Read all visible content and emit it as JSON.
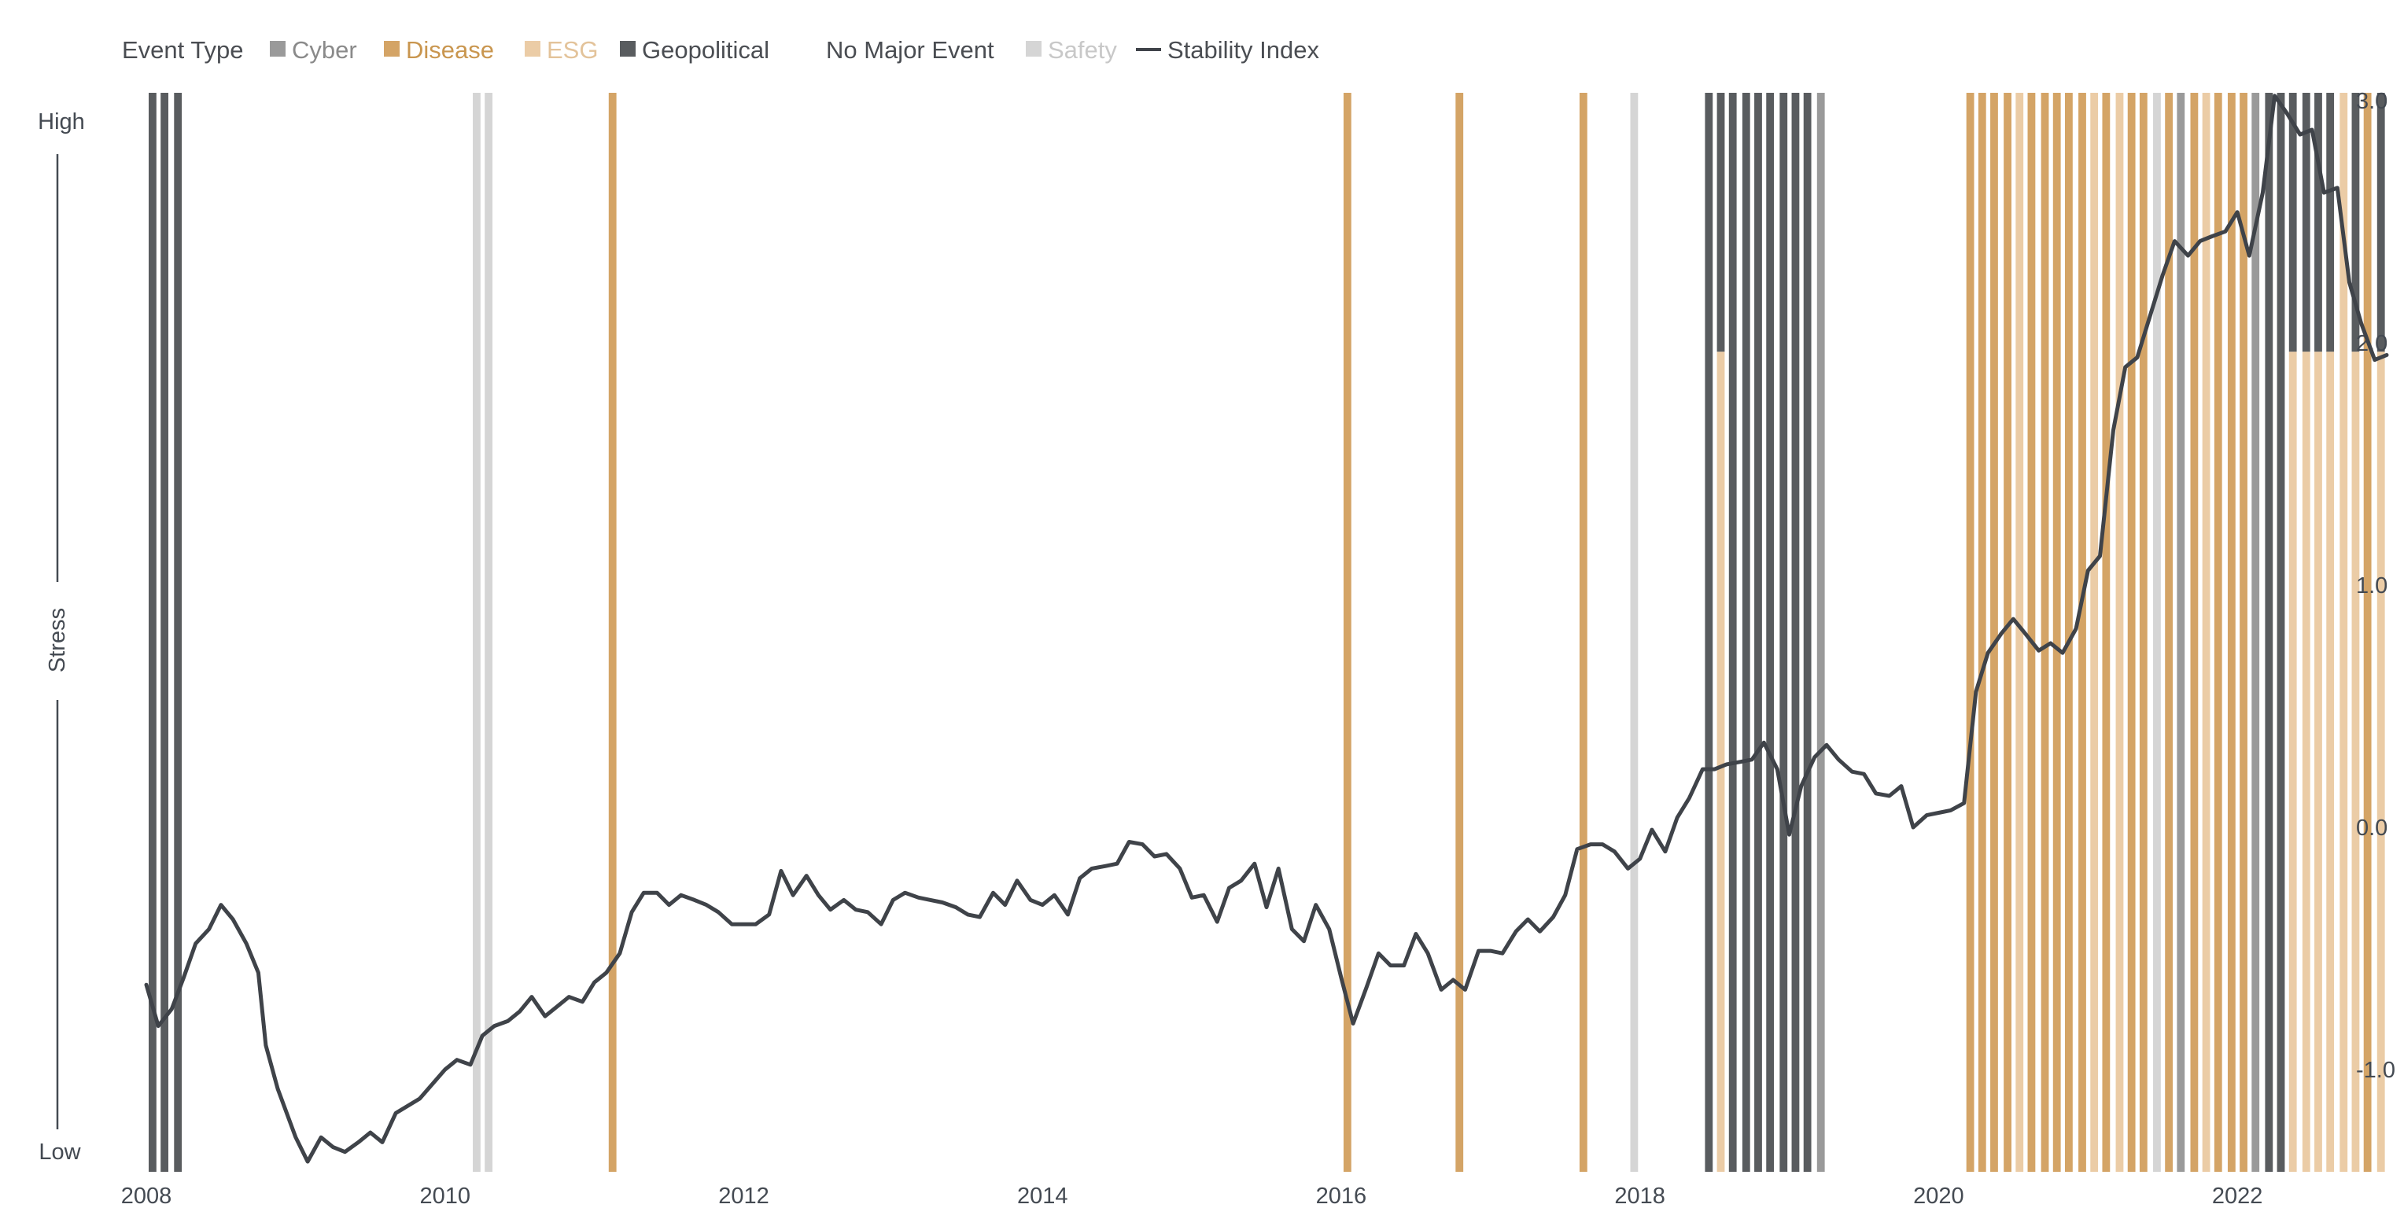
{
  "legend": {
    "title": "Event Type",
    "items": [
      {
        "key": "cyber",
        "label": "Cyber",
        "color": "#9a9a9a",
        "text_color": "#8a8a8a",
        "swatch": "square"
      },
      {
        "key": "disease",
        "label": "Disease",
        "color": "#d4a466",
        "text_color": "#c9964f",
        "swatch": "square"
      },
      {
        "key": "esg",
        "label": "ESG",
        "color": "#ebcca6",
        "text_color": "#e3c39a",
        "swatch": "square"
      },
      {
        "key": "geopolitical",
        "label": "Geopolitical",
        "color": "#595c5f",
        "text_color": "#4a4d52",
        "swatch": "square"
      },
      {
        "key": "none",
        "label": "No Major Event",
        "color": "#ffffff",
        "text_color": "#4a4d52",
        "swatch": "none"
      },
      {
        "key": "safety",
        "label": "Safety",
        "color": "#d5d5d5",
        "text_color": "#c8c8c8",
        "swatch": "square"
      },
      {
        "key": "index",
        "label": "Stability Index",
        "color": "#3f4349",
        "text_color": "#4a4d52",
        "swatch": "line"
      }
    ]
  },
  "chart_data": {
    "type": "line",
    "left_axis": {
      "label": "Stress",
      "high_label": "High",
      "low_label": "Low"
    },
    "y_ticks": [
      "3.0",
      "2.0",
      "1.0",
      "0.0",
      "-1.0"
    ],
    "y_tick_values": [
      3.0,
      2.0,
      1.0,
      0.0,
      -1.0
    ],
    "ylim": [
      -1.5,
      3.05
    ],
    "xlim": [
      2008,
      2023.0
    ],
    "x_ticks": [
      "2008",
      "2010",
      "2012",
      "2014",
      "2016",
      "2018",
      "2020",
      "2022"
    ],
    "x_tick_values": [
      2008,
      2010,
      2012,
      2014,
      2016,
      2018,
      2020,
      2022
    ],
    "series": [
      {
        "name": "Stability Index",
        "color": "#3f4349",
        "points": [
          [
            2008.0,
            -0.65
          ],
          [
            2008.08,
            -0.82
          ],
          [
            2008.17,
            -0.75
          ],
          [
            2008.25,
            -0.62
          ],
          [
            2008.33,
            -0.48
          ],
          [
            2008.42,
            -0.42
          ],
          [
            2008.5,
            -0.32
          ],
          [
            2008.58,
            -0.38
          ],
          [
            2008.67,
            -0.48
          ],
          [
            2008.75,
            -0.6
          ],
          [
            2008.8,
            -0.9
          ],
          [
            2008.88,
            -1.08
          ],
          [
            2009.0,
            -1.28
          ],
          [
            2009.08,
            -1.38
          ],
          [
            2009.17,
            -1.28
          ],
          [
            2009.25,
            -1.32
          ],
          [
            2009.33,
            -1.34
          ],
          [
            2009.42,
            -1.3
          ],
          [
            2009.5,
            -1.26
          ],
          [
            2009.58,
            -1.3
          ],
          [
            2009.67,
            -1.18
          ],
          [
            2009.83,
            -1.12
          ],
          [
            2010.0,
            -1.0
          ],
          [
            2010.08,
            -0.96
          ],
          [
            2010.17,
            -0.98
          ],
          [
            2010.25,
            -0.86
          ],
          [
            2010.33,
            -0.82
          ],
          [
            2010.42,
            -0.8
          ],
          [
            2010.5,
            -0.76
          ],
          [
            2010.58,
            -0.7
          ],
          [
            2010.67,
            -0.78
          ],
          [
            2010.75,
            -0.74
          ],
          [
            2010.83,
            -0.7
          ],
          [
            2010.92,
            -0.72
          ],
          [
            2011.0,
            -0.64
          ],
          [
            2011.08,
            -0.6
          ],
          [
            2011.17,
            -0.52
          ],
          [
            2011.25,
            -0.35
          ],
          [
            2011.33,
            -0.27
          ],
          [
            2011.42,
            -0.27
          ],
          [
            2011.5,
            -0.32
          ],
          [
            2011.58,
            -0.28
          ],
          [
            2011.67,
            -0.3
          ],
          [
            2011.75,
            -0.32
          ],
          [
            2011.83,
            -0.35
          ],
          [
            2011.92,
            -0.4
          ],
          [
            2012.0,
            -0.4
          ],
          [
            2012.08,
            -0.4
          ],
          [
            2012.17,
            -0.36
          ],
          [
            2012.25,
            -0.18
          ],
          [
            2012.33,
            -0.28
          ],
          [
            2012.42,
            -0.2
          ],
          [
            2012.5,
            -0.28
          ],
          [
            2012.58,
            -0.34
          ],
          [
            2012.67,
            -0.3
          ],
          [
            2012.75,
            -0.34
          ],
          [
            2012.83,
            -0.35
          ],
          [
            2012.92,
            -0.4
          ],
          [
            2013.0,
            -0.3
          ],
          [
            2013.08,
            -0.27
          ],
          [
            2013.17,
            -0.29
          ],
          [
            2013.25,
            -0.3
          ],
          [
            2013.33,
            -0.31
          ],
          [
            2013.42,
            -0.33
          ],
          [
            2013.5,
            -0.36
          ],
          [
            2013.58,
            -0.37
          ],
          [
            2013.67,
            -0.27
          ],
          [
            2013.75,
            -0.32
          ],
          [
            2013.83,
            -0.22
          ],
          [
            2013.92,
            -0.3
          ],
          [
            2014.0,
            -0.32
          ],
          [
            2014.08,
            -0.28
          ],
          [
            2014.17,
            -0.36
          ],
          [
            2014.25,
            -0.21
          ],
          [
            2014.33,
            -0.17
          ],
          [
            2014.42,
            -0.16
          ],
          [
            2014.5,
            -0.15
          ],
          [
            2014.58,
            -0.06
          ],
          [
            2014.67,
            -0.07
          ],
          [
            2014.75,
            -0.12
          ],
          [
            2014.83,
            -0.11
          ],
          [
            2014.92,
            -0.17
          ],
          [
            2015.0,
            -0.29
          ],
          [
            2015.08,
            -0.28
          ],
          [
            2015.17,
            -0.39
          ],
          [
            2015.25,
            -0.25
          ],
          [
            2015.33,
            -0.22
          ],
          [
            2015.42,
            -0.15
          ],
          [
            2015.5,
            -0.33
          ],
          [
            2015.58,
            -0.17
          ],
          [
            2015.67,
            -0.42
          ],
          [
            2015.75,
            -0.47
          ],
          [
            2015.83,
            -0.32
          ],
          [
            2015.92,
            -0.42
          ],
          [
            2016.0,
            -0.62
          ],
          [
            2016.08,
            -0.81
          ],
          [
            2016.17,
            -0.66
          ],
          [
            2016.25,
            -0.52
          ],
          [
            2016.33,
            -0.57
          ],
          [
            2016.42,
            -0.57
          ],
          [
            2016.5,
            -0.44
          ],
          [
            2016.58,
            -0.52
          ],
          [
            2016.67,
            -0.67
          ],
          [
            2016.75,
            -0.63
          ],
          [
            2016.83,
            -0.67
          ],
          [
            2016.92,
            -0.51
          ],
          [
            2017.0,
            -0.51
          ],
          [
            2017.08,
            -0.52
          ],
          [
            2017.17,
            -0.43
          ],
          [
            2017.25,
            -0.38
          ],
          [
            2017.33,
            -0.43
          ],
          [
            2017.42,
            -0.37
          ],
          [
            2017.5,
            -0.28
          ],
          [
            2017.58,
            -0.09
          ],
          [
            2017.67,
            -0.07
          ],
          [
            2017.75,
            -0.07
          ],
          [
            2017.83,
            -0.1
          ],
          [
            2017.92,
            -0.17
          ],
          [
            2018.0,
            -0.13
          ],
          [
            2018.08,
            -0.01
          ],
          [
            2018.17,
            -0.1
          ],
          [
            2018.25,
            0.04
          ],
          [
            2018.33,
            0.12
          ],
          [
            2018.42,
            0.24
          ],
          [
            2018.5,
            0.24
          ],
          [
            2018.58,
            0.26
          ],
          [
            2018.67,
            0.27
          ],
          [
            2018.75,
            0.28
          ],
          [
            2018.83,
            0.35
          ],
          [
            2018.92,
            0.24
          ],
          [
            2019.0,
            -0.03
          ],
          [
            2019.08,
            0.17
          ],
          [
            2019.17,
            0.29
          ],
          [
            2019.25,
            0.34
          ],
          [
            2019.33,
            0.28
          ],
          [
            2019.42,
            0.23
          ],
          [
            2019.5,
            0.22
          ],
          [
            2019.58,
            0.14
          ],
          [
            2019.67,
            0.13
          ],
          [
            2019.75,
            0.17
          ],
          [
            2019.83,
            0.0
          ],
          [
            2019.92,
            0.05
          ],
          [
            2020.0,
            0.06
          ],
          [
            2020.08,
            0.07
          ],
          [
            2020.17,
            0.1
          ],
          [
            2020.25,
            0.56
          ],
          [
            2020.33,
            0.72
          ],
          [
            2020.42,
            0.8
          ],
          [
            2020.5,
            0.86
          ],
          [
            2020.58,
            0.8
          ],
          [
            2020.67,
            0.73
          ],
          [
            2020.75,
            0.76
          ],
          [
            2020.83,
            0.72
          ],
          [
            2020.92,
            0.82
          ],
          [
            2021.0,
            1.06
          ],
          [
            2021.08,
            1.12
          ],
          [
            2021.17,
            1.64
          ],
          [
            2021.25,
            1.9
          ],
          [
            2021.33,
            1.94
          ],
          [
            2021.42,
            2.12
          ],
          [
            2021.5,
            2.28
          ],
          [
            2021.58,
            2.42
          ],
          [
            2021.67,
            2.36
          ],
          [
            2021.75,
            2.42
          ],
          [
            2021.83,
            2.44
          ],
          [
            2021.92,
            2.46
          ],
          [
            2022.0,
            2.54
          ],
          [
            2022.08,
            2.36
          ],
          [
            2022.17,
            2.62
          ],
          [
            2022.25,
            3.02
          ],
          [
            2022.33,
            2.95
          ],
          [
            2022.42,
            2.86
          ],
          [
            2022.5,
            2.88
          ],
          [
            2022.58,
            2.62
          ],
          [
            2022.67,
            2.64
          ],
          [
            2022.75,
            2.25
          ],
          [
            2022.83,
            2.08
          ],
          [
            2022.92,
            1.93
          ],
          [
            2023.0,
            1.95
          ]
        ]
      }
    ],
    "event_bars": [
      {
        "x": 2008.0,
        "lower": "geopolitical",
        "upper": "geopolitical",
        "split": 1.0
      },
      {
        "x": 2008.08,
        "lower": "geopolitical",
        "upper": "geopolitical",
        "split": 1.0
      },
      {
        "x": 2008.17,
        "lower": "geopolitical",
        "upper": "geopolitical",
        "split": 1.0
      },
      {
        "x": 2010.17,
        "lower": "safety",
        "upper": "safety",
        "split": 1.0
      },
      {
        "x": 2010.25,
        "lower": "safety",
        "upper": "safety",
        "split": 1.0
      },
      {
        "x": 2011.08,
        "lower": "disease",
        "upper": "disease",
        "split": 1.0
      },
      {
        "x": 2016.0,
        "lower": "disease",
        "upper": "disease",
        "split": 1.0
      },
      {
        "x": 2016.75,
        "lower": "disease",
        "upper": "disease",
        "split": 1.0
      },
      {
        "x": 2017.58,
        "lower": "disease",
        "upper": "disease",
        "split": 1.0
      },
      {
        "x": 2017.92,
        "lower": "safety",
        "upper": "safety",
        "split": 1.0
      },
      {
        "x": 2018.42,
        "lower": "geopolitical",
        "upper": "geopolitical",
        "split": 1.0
      },
      {
        "x": 2018.5,
        "lower": "esg",
        "upper": "geopolitical",
        "split": 0.76
      },
      {
        "x": 2018.58,
        "lower": "geopolitical",
        "upper": "geopolitical",
        "split": 1.0
      },
      {
        "x": 2018.67,
        "lower": "geopolitical",
        "upper": "geopolitical",
        "split": 1.0
      },
      {
        "x": 2018.75,
        "lower": "geopolitical",
        "upper": "geopolitical",
        "split": 1.0
      },
      {
        "x": 2018.83,
        "lower": "geopolitical",
        "upper": "geopolitical",
        "split": 1.0
      },
      {
        "x": 2018.92,
        "lower": "geopolitical",
        "upper": "geopolitical",
        "split": 1.0
      },
      {
        "x": 2019.0,
        "lower": "geopolitical",
        "upper": "geopolitical",
        "split": 1.0
      },
      {
        "x": 2019.08,
        "lower": "geopolitical",
        "upper": "geopolitical",
        "split": 1.0
      },
      {
        "x": 2019.17,
        "lower": "cyber",
        "upper": "cyber",
        "split": 1.0
      },
      {
        "x": 2020.17,
        "lower": "disease",
        "upper": "disease",
        "split": 1.0
      },
      {
        "x": 2020.25,
        "lower": "disease",
        "upper": "disease",
        "split": 1.0
      },
      {
        "x": 2020.33,
        "lower": "disease",
        "upper": "disease",
        "split": 1.0
      },
      {
        "x": 2020.42,
        "lower": "disease",
        "upper": "disease",
        "split": 1.0
      },
      {
        "x": 2020.5,
        "lower": "esg",
        "upper": "esg",
        "split": 1.0
      },
      {
        "x": 2020.58,
        "lower": "disease",
        "upper": "disease",
        "split": 1.0
      },
      {
        "x": 2020.67,
        "lower": "disease",
        "upper": "disease",
        "split": 1.0
      },
      {
        "x": 2020.75,
        "lower": "disease",
        "upper": "disease",
        "split": 1.0
      },
      {
        "x": 2020.83,
        "lower": "disease",
        "upper": "disease",
        "split": 1.0
      },
      {
        "x": 2020.92,
        "lower": "disease",
        "upper": "disease",
        "split": 1.0
      },
      {
        "x": 2021.0,
        "lower": "esg",
        "upper": "esg",
        "split": 1.0
      },
      {
        "x": 2021.08,
        "lower": "disease",
        "upper": "disease",
        "split": 1.0
      },
      {
        "x": 2021.17,
        "lower": "esg",
        "upper": "esg",
        "split": 1.0
      },
      {
        "x": 2021.25,
        "lower": "disease",
        "upper": "disease",
        "split": 1.0
      },
      {
        "x": 2021.33,
        "lower": "disease",
        "upper": "disease",
        "split": 1.0
      },
      {
        "x": 2021.42,
        "lower": "safety",
        "upper": "safety",
        "split": 1.0
      },
      {
        "x": 2021.5,
        "lower": "disease",
        "upper": "disease",
        "split": 1.0
      },
      {
        "x": 2021.58,
        "lower": "cyber",
        "upper": "cyber",
        "split": 1.0
      },
      {
        "x": 2021.67,
        "lower": "disease",
        "upper": "disease",
        "split": 1.0
      },
      {
        "x": 2021.75,
        "lower": "esg",
        "upper": "esg",
        "split": 1.0
      },
      {
        "x": 2021.83,
        "lower": "disease",
        "upper": "disease",
        "split": 1.0
      },
      {
        "x": 2021.92,
        "lower": "disease",
        "upper": "disease",
        "split": 1.0
      },
      {
        "x": 2022.0,
        "lower": "disease",
        "upper": "disease",
        "split": 1.0
      },
      {
        "x": 2022.08,
        "lower": "cyber",
        "upper": "cyber",
        "split": 1.0
      },
      {
        "x": 2022.17,
        "lower": "geopolitical",
        "upper": "geopolitical",
        "split": 1.0
      },
      {
        "x": 2022.25,
        "lower": "geopolitical",
        "upper": "geopolitical",
        "split": 1.0
      },
      {
        "x": 2022.33,
        "lower": "esg",
        "upper": "geopolitical",
        "split": 0.76
      },
      {
        "x": 2022.42,
        "lower": "esg",
        "upper": "geopolitical",
        "split": 0.76
      },
      {
        "x": 2022.5,
        "lower": "esg",
        "upper": "geopolitical",
        "split": 0.76
      },
      {
        "x": 2022.58,
        "lower": "esg",
        "upper": "geopolitical",
        "split": 0.76
      },
      {
        "x": 2022.67,
        "lower": "esg",
        "upper": "esg",
        "split": 1.0
      },
      {
        "x": 2022.75,
        "lower": "esg",
        "upper": "geopolitical",
        "split": 0.76
      },
      {
        "x": 2022.83,
        "lower": "disease",
        "upper": "disease",
        "split": 1.0
      },
      {
        "x": 2022.92,
        "lower": "esg",
        "upper": "geopolitical",
        "split": 0.76
      }
    ]
  }
}
